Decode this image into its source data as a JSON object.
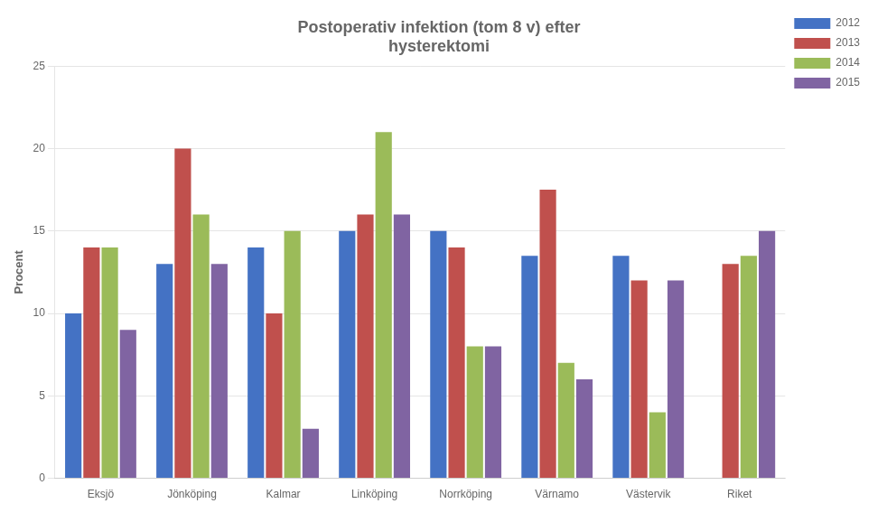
{
  "chart_data": {
    "type": "bar",
    "title": "Postoperativ infektion (tom 8 v) efter\nhysterektomi",
    "ylabel": "Procent",
    "categories": [
      "Eksjö",
      "Jönköping",
      "Kalmar",
      "Linköping",
      "Norrköping",
      "Värnamo",
      "Västervik",
      "Riket"
    ],
    "series": [
      {
        "name": "2012",
        "color": "#4472C4",
        "values": [
          10,
          13,
          14,
          15,
          15,
          13.5,
          13.5,
          0
        ]
      },
      {
        "name": "2013",
        "color": "#C0504D",
        "values": [
          14,
          20,
          10,
          16,
          14,
          17.5,
          12,
          13
        ]
      },
      {
        "name": "2014",
        "color": "#9BBB59",
        "values": [
          14,
          16,
          15,
          21,
          8,
          7,
          4,
          13.5
        ]
      },
      {
        "name": "2015",
        "color": "#8064A2",
        "values": [
          9,
          13,
          3,
          16,
          8,
          6,
          12,
          15
        ]
      }
    ],
    "ylim": [
      0,
      25
    ],
    "yticks": [
      0,
      5,
      10,
      15,
      20,
      25
    ],
    "grid": true,
    "legend": "right"
  }
}
